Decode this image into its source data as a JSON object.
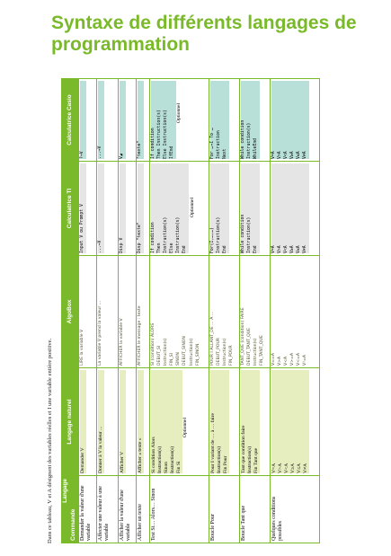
{
  "header": {
    "title": "Syntaxe de différents langages de programmation",
    "caption": "Dans ce tableau, V et A désignent des variables réelles et I une variable entière positive."
  },
  "table": {
    "corner_top": "Langage",
    "corner_bottom": "Commande",
    "columns": [
      "Langage naturel",
      "AlgoBox",
      "Calculatrice TI",
      "Calculatrice Casio"
    ],
    "optional_note": "Optionnel",
    "rows": [
      [
        "Demander la valeur d'une variable",
        [
          "Demander V"
        ],
        [
          "LIRE la variable V"
        ],
        [
          "Input V ou Prompt V"
        ],
        [
          "?→V"
        ]
      ],
      [
        "Affecter une valeur à une variable",
        [
          "Donner à V la valeur ..."
        ],
        [
          "La variable V prend la valeur ..."
        ],
        [
          "...→V"
        ],
        [
          "...→V"
        ]
      ],
      [
        "Afficher la valeur d'une variable",
        [
          "Afficher V"
        ],
        [
          "AFFICHER la variable V"
        ],
        [
          "Disp V"
        ],
        [
          "V◢"
        ]
      ],
      [
        "Afficher un texte",
        [
          "Afficher « texte »"
        ],
        [
          "AFFICHER le message : texte"
        ],
        [
          "Disp \"texte\""
        ],
        [
          "\"texte\""
        ]
      ],
      [
        "Test Si… Alors… Sinon",
        [
          "Si condition Alors",
          "Instruction(s)",
          "Sinon",
          "Instruction(s)",
          "Fin Si"
        ],
        [
          "SI (condition) ALORS",
          "DEBUT_SI",
          "Instruction(s)",
          "FIN_SI",
          "SINON",
          "DEBUT_SINON",
          "Instruction(s)",
          "FIN_SINON"
        ],
        [
          "If condition",
          "Then",
          "Instruction(s)",
          "Else",
          "Instruction(s)",
          "End"
        ],
        [
          "If condition",
          "Then Instruction(s)",
          "Else Instruction(s)",
          "IfEnd"
        ]
      ],
      [
        "Boucle Pour",
        [
          "Pour I variant de … à … faire",
          "Instruction(s)",
          "Fin Pour"
        ],
        [
          "POUR I ALLANT_DE … A …",
          "DEBUT_POUR",
          "Instruction(s)",
          "FIN_POUR"
        ],
        [
          "For(I,…,…)",
          "Instruction(s)",
          "End"
        ],
        [
          "For …→I To …",
          "Instruction",
          "Next"
        ]
      ],
      [
        "Boucle Tant que",
        [
          "Tant que condition faire",
          "Instruction(s)",
          "Fin Tant que"
        ],
        [
          "TANT_QUE (condition) FAIRE",
          "DEBUT_TANT_QUE",
          "Instruction(s)",
          "FIN_TANT_QUE"
        ],
        [
          "While condition",
          "Instruction(s)",
          "End"
        ],
        [
          "While condition",
          "Instruction(s)",
          "WhileEnd"
        ]
      ],
      [
        "Quelques conditions possibles",
        [
          "V=A",
          "V>A",
          "V<A",
          "V≥A",
          "V≤A",
          "V≠A"
        ],
        [
          "V==A",
          "V>A",
          "V<A",
          "V>=A",
          "V<=A",
          "V!=A"
        ],
        [
          "V=A",
          "V>A",
          "V<A",
          "V≥A",
          "V≤A",
          "V≠A"
        ],
        [
          "V=A",
          "V>A",
          "V<A",
          "V≥A",
          "V≤A",
          "V≠A"
        ]
      ]
    ]
  }
}
